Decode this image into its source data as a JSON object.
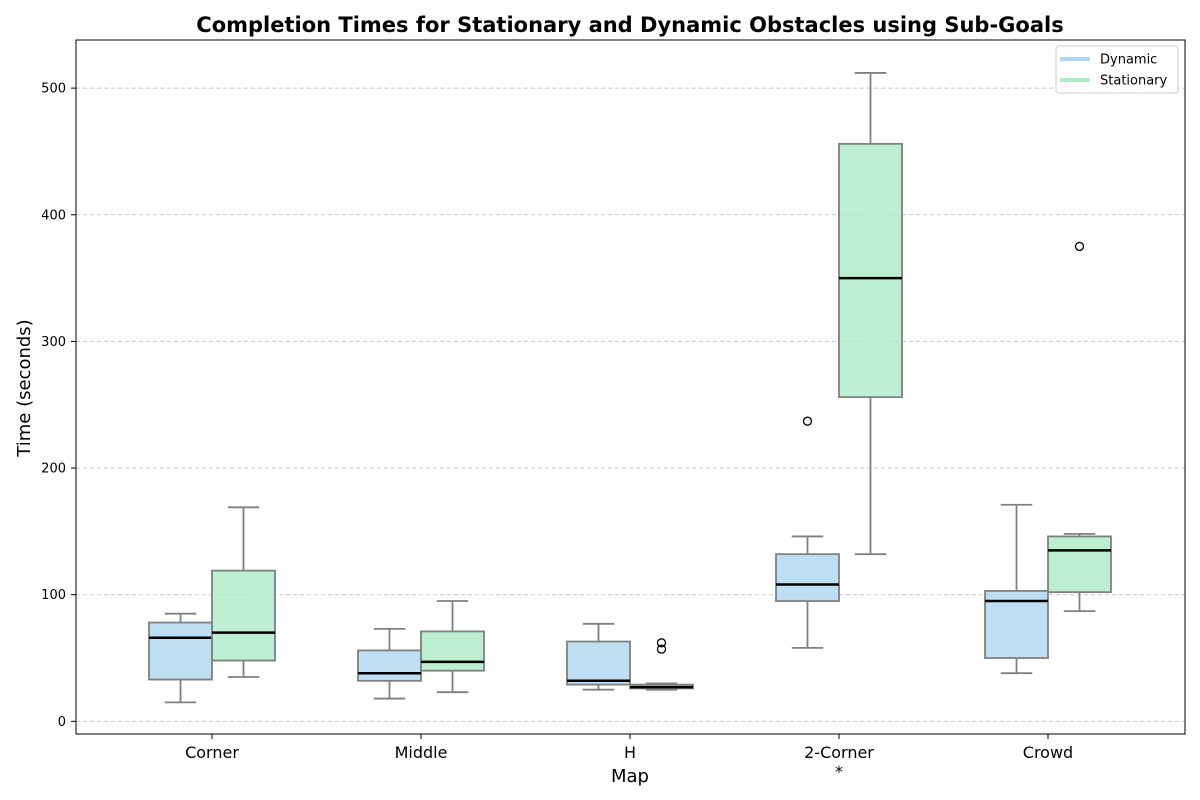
{
  "chart_data": {
    "type": "box",
    "title": "Completion Times for Stationary and Dynamic Obstacles using Sub-Goals",
    "xlabel": "Map",
    "ylabel": "Time (seconds)",
    "categories": [
      "Corner",
      "Middle",
      "H",
      "2-Corner",
      "Crowd"
    ],
    "category_annotations": [
      "",
      "",
      "",
      "*",
      ""
    ],
    "ylim": [
      -10,
      538
    ],
    "yticks": [
      0,
      100,
      200,
      300,
      400,
      500
    ],
    "grid": "y-dashed",
    "legend_position": "top-right",
    "series": [
      {
        "name": "Dynamic",
        "color": "#aed6f1",
        "boxes": [
          {
            "whisker_low": 15,
            "q1": 33,
            "median": 66,
            "q3": 78,
            "whisker_high": 85,
            "outliers": []
          },
          {
            "whisker_low": 18,
            "q1": 32,
            "median": 38,
            "q3": 56,
            "whisker_high": 73,
            "outliers": []
          },
          {
            "whisker_low": 25,
            "q1": 29,
            "median": 32,
            "q3": 63,
            "whisker_high": 77,
            "outliers": []
          },
          {
            "whisker_low": 58,
            "q1": 95,
            "median": 108,
            "q3": 132,
            "whisker_high": 146,
            "outliers": [
              237
            ]
          },
          {
            "whisker_low": 38,
            "q1": 50,
            "median": 95,
            "q3": 103,
            "whisker_high": 171,
            "outliers": []
          }
        ]
      },
      {
        "name": "Stationary",
        "color": "#abebc6",
        "boxes": [
          {
            "whisker_low": 35,
            "q1": 48,
            "median": 70,
            "q3": 119,
            "whisker_high": 169,
            "outliers": []
          },
          {
            "whisker_low": 23,
            "q1": 40,
            "median": 47,
            "q3": 71,
            "whisker_high": 95,
            "outliers": []
          },
          {
            "whisker_low": 25,
            "q1": 26,
            "median": 27,
            "q3": 29,
            "whisker_high": 30,
            "outliers": [
              57,
              62
            ]
          },
          {
            "whisker_low": 132,
            "q1": 256,
            "median": 350,
            "q3": 456,
            "whisker_high": 512,
            "outliers": []
          },
          {
            "whisker_low": 87,
            "q1": 102,
            "median": 135,
            "q3": 146,
            "whisker_high": 148,
            "outliers": [
              375
            ]
          }
        ]
      }
    ]
  }
}
